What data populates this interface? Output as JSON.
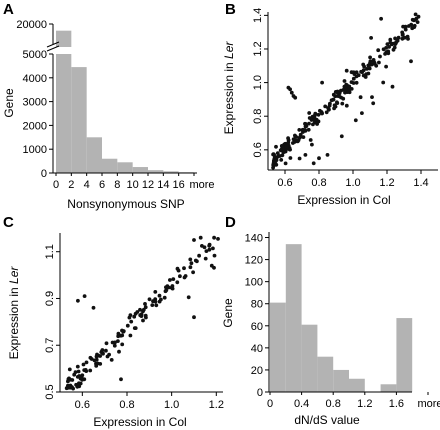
{
  "chart_data": [
    {
      "panel": "A",
      "type": "bar",
      "xlabel": "Nonsynonymous SNP",
      "ylabel": "Gene",
      "x_tick_labels": [
        "0",
        "2",
        "4",
        "6",
        "8",
        "10",
        "12",
        "14",
        "16",
        "more"
      ],
      "y_tick_labels": [
        "0",
        "1000",
        "2000",
        "3000",
        "4000",
        "5000",
        "20000"
      ],
      "axis_break": [
        5000,
        17000
      ],
      "bin_edges": [
        0,
        2,
        4,
        6,
        8,
        10,
        12,
        14,
        16,
        18
      ],
      "values": [
        19000,
        4450,
        1500,
        600,
        450,
        250,
        120,
        70,
        30
      ],
      "ylim": [
        0,
        20000
      ],
      "bar_color": "#b3b3b3"
    },
    {
      "panel": "B",
      "type": "scatter",
      "xlabel": "Expression in Col",
      "ylabel_prefix": "Expression in ",
      "ylabel_italic": "Ler",
      "x_ticks": [
        0.6,
        0.8,
        1.0,
        1.2,
        1.4
      ],
      "x_tick_labels": [
        "0.6",
        "0.8",
        "1.0",
        "1.2",
        "1.4"
      ],
      "y_ticks": [
        0.6,
        0.8,
        1.0,
        1.2,
        1.4
      ],
      "y_tick_labels": [
        "0.6",
        "0.8",
        "1.0",
        "1.2",
        "1.4"
      ],
      "xlim": [
        0.5,
        1.5
      ],
      "ylim": [
        0.48,
        1.42
      ],
      "points_generated": true,
      "n_points": 260,
      "seed": 7
    },
    {
      "panel": "C",
      "type": "scatter",
      "xlabel": "Expression in Col",
      "ylabel_prefix": "Expression in ",
      "ylabel_italic": "Ler",
      "x_ticks": [
        0.6,
        0.8,
        1.0,
        1.2
      ],
      "x_tick_labels": [
        "0.6",
        "0.8",
        "1.0",
        "1.2"
      ],
      "y_ticks": [
        0.5,
        0.7,
        0.9,
        1.1
      ],
      "y_tick_labels": [
        "0.5",
        "0.7",
        "0.9",
        "1.1"
      ],
      "xlim": [
        0.5,
        1.23
      ],
      "ylim": [
        0.5,
        1.18
      ],
      "points_generated": true,
      "n_points": 150,
      "seed": 13
    },
    {
      "panel": "D",
      "type": "bar",
      "xlabel": "dN/dS value",
      "ylabel": "Gene",
      "x_tick_labels": [
        "0",
        "0.4",
        "0.8",
        "1.2",
        "1.6",
        "more"
      ],
      "y_ticks": [
        0,
        20,
        40,
        60,
        80,
        100,
        120,
        140
      ],
      "y_tick_labels": [
        "0",
        "20",
        "40",
        "60",
        "80",
        "100",
        "120",
        "140"
      ],
      "bin_edges": [
        0,
        0.2,
        0.4,
        0.6,
        0.8,
        1.0,
        1.2,
        1.4,
        1.6,
        1.8
      ],
      "values": [
        81,
        134,
        61,
        32,
        20,
        12,
        0,
        7,
        67
      ],
      "ylim": [
        0,
        145
      ],
      "bar_color": "#b3b3b3"
    }
  ]
}
